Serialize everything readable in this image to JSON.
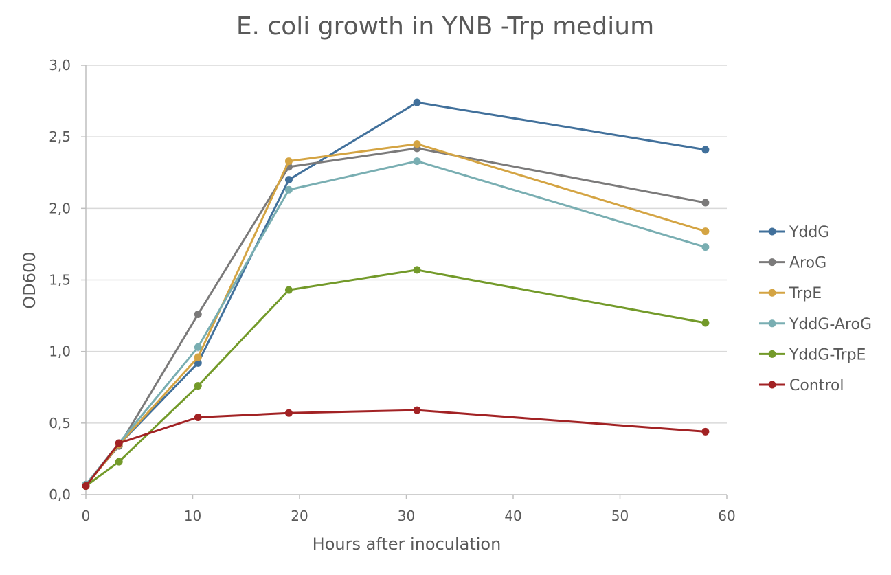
{
  "chart_data": {
    "type": "line",
    "title": "E. coli growth in YNB -Trp medium",
    "xlabel": "Hours after inoculation",
    "ylabel": "OD600",
    "xlim": [
      0,
      60
    ],
    "ylim": [
      0,
      3
    ],
    "x_ticks": [
      0,
      10,
      20,
      30,
      40,
      50,
      60
    ],
    "x_tick_labels": [
      "0",
      "10",
      "20",
      "30",
      "40",
      "50",
      "60"
    ],
    "y_ticks": [
      0,
      0.5,
      1,
      1.5,
      2,
      2.5,
      3
    ],
    "y_tick_labels": [
      "0,0",
      "0,5",
      "1,0",
      "1,5",
      "2,0",
      "2,5",
      "3,0"
    ],
    "grid": "horizontal",
    "legend_position": "right",
    "series": [
      {
        "name": "YddG",
        "color": "#41709b",
        "points": [
          [
            0,
            0.07
          ],
          [
            3.1,
            0.35
          ],
          [
            10.5,
            0.92
          ],
          [
            19,
            2.2
          ],
          [
            31,
            2.74
          ],
          [
            58,
            2.41
          ]
        ]
      },
      {
        "name": "AroG",
        "color": "#7b7a7a",
        "points": [
          [
            0,
            0.07
          ],
          [
            3.1,
            0.34
          ],
          [
            10.5,
            1.26
          ],
          [
            19,
            2.29
          ],
          [
            31,
            2.42
          ],
          [
            58,
            2.04
          ]
        ]
      },
      {
        "name": "TrpE",
        "color": "#d4a443",
        "points": [
          [
            0,
            0.06
          ],
          [
            3.1,
            0.35
          ],
          [
            10.5,
            0.96
          ],
          [
            19,
            2.33
          ],
          [
            31,
            2.45
          ],
          [
            58,
            1.84
          ]
        ]
      },
      {
        "name": "YddG-AroG",
        "color": "#79aeb2",
        "points": [
          [
            0,
            0.07
          ],
          [
            3.1,
            0.36
          ],
          [
            10.5,
            1.03
          ],
          [
            19,
            2.13
          ],
          [
            31,
            2.33
          ],
          [
            58,
            1.73
          ]
        ]
      },
      {
        "name": "YddG-TrpE",
        "color": "#739a2a",
        "points": [
          [
            0,
            0.06
          ],
          [
            3.1,
            0.23
          ],
          [
            10.5,
            0.76
          ],
          [
            19,
            1.43
          ],
          [
            31,
            1.57
          ],
          [
            58,
            1.2
          ]
        ]
      },
      {
        "name": "Control",
        "color": "#a22224",
        "points": [
          [
            0,
            0.06
          ],
          [
            3.1,
            0.36
          ],
          [
            10.5,
            0.54
          ],
          [
            19,
            0.57
          ],
          [
            31,
            0.59
          ],
          [
            58,
            0.44
          ]
        ]
      }
    ]
  }
}
